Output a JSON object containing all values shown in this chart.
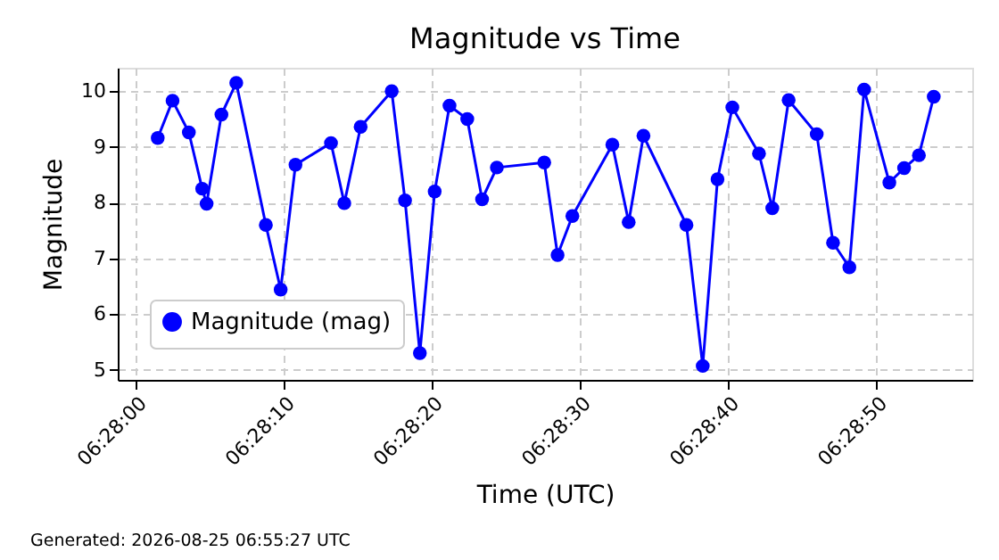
{
  "chart_data": {
    "type": "line",
    "title": "Magnitude vs Time",
    "xlabel": "Time (UTC)",
    "ylabel": "Magnitude",
    "x": [
      6.467083,
      6.467361,
      6.467667,
      6.467917,
      6.468,
      6.468278,
      6.468556,
      6.469111,
      6.469389,
      6.469667,
      6.470333,
      6.470583,
      6.470889,
      6.471472,
      6.471722,
      6.472,
      6.472278,
      6.472556,
      6.472889,
      6.473167,
      6.473444,
      6.474333,
      6.474583,
      6.474861,
      6.475611,
      6.475917,
      6.476194,
      6.477,
      6.477306,
      6.477583,
      6.477861,
      6.478361,
      6.478611,
      6.478917,
      6.479444,
      6.47975,
      6.480056,
      6.480333,
      6.480806,
      6.481083,
      6.481361,
      6.481639
    ],
    "series": [
      {
        "name": "Magnitude (mag)",
        "color": "#0000ff",
        "values": [
          9.16,
          9.83,
          9.26,
          8.25,
          7.98,
          9.58,
          10.15,
          7.6,
          6.44,
          8.68,
          9.07,
          7.99,
          9.36,
          10.0,
          8.04,
          5.3,
          8.2,
          9.74,
          9.5,
          8.06,
          8.63,
          8.72,
          7.06,
          7.76,
          9.04,
          7.65,
          9.2,
          7.6,
          5.07,
          8.42,
          9.71,
          8.88,
          7.9,
          9.84,
          9.23,
          7.28,
          6.84,
          10.03,
          8.36,
          8.62,
          8.85,
          9.9
        ]
      }
    ],
    "xlim": [
      6.466333,
      6.482361
    ],
    "xticks": [
      {
        "value": 6.466667,
        "label": "06:28:00"
      },
      {
        "value": 6.469444,
        "label": "06:28:10"
      },
      {
        "value": 6.472222,
        "label": "06:28:20"
      },
      {
        "value": 6.475,
        "label": "06:28:30"
      },
      {
        "value": 6.477778,
        "label": "06:28:40"
      },
      {
        "value": 6.480556,
        "label": "06:28:50"
      }
    ],
    "ylim": [
      4.82,
      10.42
    ],
    "yticks": [
      5,
      6,
      7,
      8,
      9,
      10
    ],
    "grid": true,
    "legend": "bottom left",
    "marker": "circle",
    "line_style": "solid",
    "annotations": [
      "Generated: 2026-08-25 06:55:27 UTC"
    ]
  }
}
